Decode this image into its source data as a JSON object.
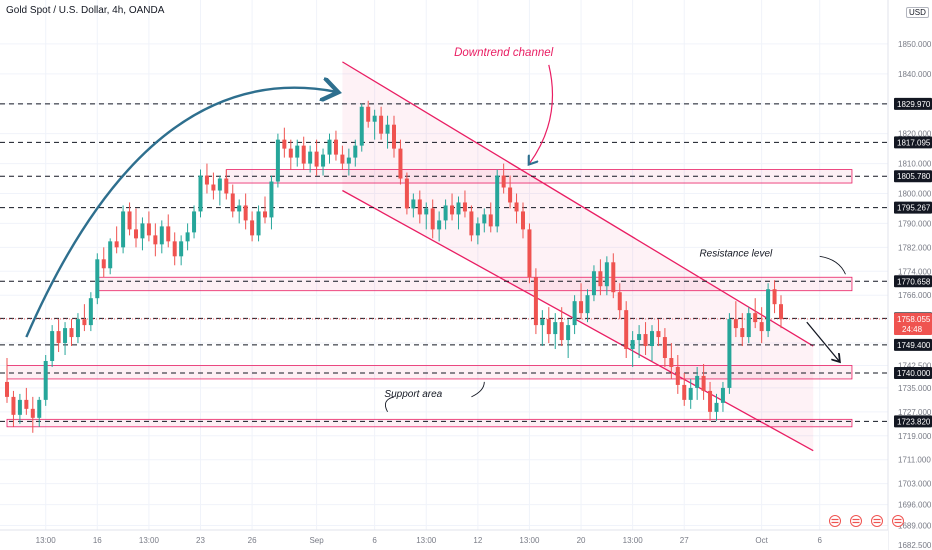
{
  "header": {
    "symbol_title": "Gold Spot / U.S. Dollar, 4h, OANDA",
    "currency_badge": "USD"
  },
  "colors": {
    "up": "#26a69a",
    "down": "#ef5350",
    "channel": "#e91e63",
    "arrow": "#2e6f8e",
    "level_line": "#131722",
    "price_line": "#ef5350"
  },
  "chart_data": {
    "type": "candlestick",
    "title": "Gold Spot / U.S. Dollar, 4h, OANDA",
    "ylim": [
      1687.5,
      1858
    ],
    "y_ticks": [
      "1850.000",
      "1840.000",
      "1830.000",
      "1820.000",
      "1810.000",
      "1800.000",
      "1790.000",
      "1782.000",
      "1774.000",
      "1766.000",
      "1758.000",
      "1750.000",
      "1742.500",
      "1735.000",
      "1727.000",
      "1719.000",
      "1711.000",
      "1703.000",
      "1696.000",
      "1689.000",
      "1682.500"
    ],
    "x_ticks": [
      {
        "label": "13:00",
        "i": 6
      },
      {
        "label": "16",
        "i": 14
      },
      {
        "label": "13:00",
        "i": 22
      },
      {
        "label": "23",
        "i": 30
      },
      {
        "label": "26",
        "i": 38
      },
      {
        "label": "Sep",
        "i": 48
      },
      {
        "label": "6",
        "i": 57
      },
      {
        "label": "13:00",
        "i": 65
      },
      {
        "label": "12",
        "i": 73
      },
      {
        "label": "13:00",
        "i": 81
      },
      {
        "label": "20",
        "i": 89
      },
      {
        "label": "13:00",
        "i": 97
      },
      {
        "label": "27",
        "i": 105
      },
      {
        "label": "Oct",
        "i": 117
      },
      {
        "label": "6",
        "i": 126
      }
    ],
    "price_levels": [
      {
        "label": "1829.970",
        "value": 1829.97,
        "style": "dashed"
      },
      {
        "label": "1817.095",
        "value": 1817.1,
        "style": "dashed"
      },
      {
        "label": "1805.780",
        "value": 1805.78,
        "style": "dashed"
      },
      {
        "label": "1795.267",
        "value": 1795.27,
        "style": "dashed"
      },
      {
        "label": "1770.658",
        "value": 1770.66,
        "style": "dashed"
      },
      {
        "label": "1758.250",
        "value": 1758.25,
        "style": "dashed"
      },
      {
        "label": "1749.400",
        "value": 1749.4,
        "style": "dashed"
      },
      {
        "label": "1740.000",
        "value": 1740.0,
        "style": "dashed"
      },
      {
        "label": "1723.820",
        "value": 1723.82,
        "style": "dashed"
      }
    ],
    "current_price": {
      "label": "1758.055",
      "countdown": "24:48",
      "value": 1758.06
    },
    "zones": [
      {
        "name": "resistance-zone-1805",
        "from_i": 34,
        "to_i": 131,
        "y1": 1803.5,
        "y2": 1808
      },
      {
        "name": "resistance-zone-1770",
        "from_i": 14,
        "to_i": 131,
        "y1": 1767.5,
        "y2": 1772
      },
      {
        "name": "support-zone-1740",
        "from_i": 0,
        "to_i": 131,
        "y1": 1738,
        "y2": 1742.5
      },
      {
        "name": "support-zone-1723",
        "from_i": 0,
        "to_i": 131,
        "y1": 1722,
        "y2": 1724.5
      }
    ],
    "channel": {
      "upper": {
        "i1": 52,
        "y1": 1844,
        "i2": 125,
        "y2": 1749
      },
      "lower": {
        "i1": 52,
        "y1": 1801,
        "i2": 125,
        "y2": 1714
      }
    },
    "annotations": [
      {
        "text": "Downtrend channel",
        "i": 77,
        "y": 1846
      },
      {
        "text": "Resistance level",
        "i": 113,
        "y": 1779
      },
      {
        "text": "Support area",
        "i": 63,
        "y": 1732
      }
    ],
    "candles": [
      [
        1737,
        1745,
        1730,
        1732
      ],
      [
        1732,
        1734,
        1722,
        1726
      ],
      [
        1726,
        1733,
        1723,
        1731
      ],
      [
        1731,
        1735,
        1726,
        1728
      ],
      [
        1728,
        1732,
        1720,
        1725
      ],
      [
        1725,
        1732,
        1722,
        1731
      ],
      [
        1731,
        1746,
        1729,
        1744
      ],
      [
        1744,
        1756,
        1742,
        1754
      ],
      [
        1754,
        1758,
        1747,
        1750
      ],
      [
        1750,
        1757,
        1746,
        1755
      ],
      [
        1755,
        1758,
        1749,
        1752
      ],
      [
        1752,
        1760,
        1750,
        1758
      ],
      [
        1758,
        1763,
        1754,
        1756
      ],
      [
        1756,
        1767,
        1754,
        1765
      ],
      [
        1765,
        1780,
        1763,
        1778
      ],
      [
        1778,
        1782,
        1772,
        1775
      ],
      [
        1775,
        1785,
        1773,
        1784
      ],
      [
        1784,
        1789,
        1780,
        1782
      ],
      [
        1782,
        1796,
        1780,
        1794
      ],
      [
        1794,
        1797,
        1786,
        1788
      ],
      [
        1788,
        1795,
        1782,
        1785
      ],
      [
        1785,
        1792,
        1781,
        1790
      ],
      [
        1790,
        1794,
        1784,
        1786
      ],
      [
        1786,
        1790,
        1779,
        1783
      ],
      [
        1783,
        1791,
        1780,
        1789
      ],
      [
        1789,
        1793,
        1782,
        1784
      ],
      [
        1784,
        1787,
        1776,
        1779
      ],
      [
        1779,
        1786,
        1776,
        1784
      ],
      [
        1784,
        1790,
        1781,
        1787
      ],
      [
        1787,
        1796,
        1785,
        1794
      ],
      [
        1794,
        1808,
        1792,
        1806
      ],
      [
        1806,
        1810,
        1800,
        1803
      ],
      [
        1803,
        1807,
        1798,
        1801
      ],
      [
        1801,
        1806,
        1796,
        1805
      ],
      [
        1805,
        1808,
        1798,
        1800
      ],
      [
        1800,
        1803,
        1792,
        1794
      ],
      [
        1794,
        1798,
        1790,
        1796
      ],
      [
        1796,
        1800,
        1788,
        1791
      ],
      [
        1791,
        1794,
        1784,
        1786
      ],
      [
        1786,
        1796,
        1784,
        1794
      ],
      [
        1794,
        1799,
        1790,
        1792
      ],
      [
        1792,
        1806,
        1788,
        1804
      ],
      [
        1804,
        1820,
        1802,
        1818
      ],
      [
        1818,
        1822,
        1812,
        1815
      ],
      [
        1815,
        1818,
        1808,
        1812
      ],
      [
        1812,
        1818,
        1809,
        1816
      ],
      [
        1816,
        1819,
        1808,
        1810
      ],
      [
        1810,
        1816,
        1807,
        1814
      ],
      [
        1814,
        1818,
        1806,
        1809
      ],
      [
        1809,
        1815,
        1806,
        1813
      ],
      [
        1813,
        1820,
        1810,
        1818
      ],
      [
        1818,
        1821,
        1811,
        1813
      ],
      [
        1813,
        1816,
        1808,
        1810
      ],
      [
        1810,
        1815,
        1806,
        1812
      ],
      [
        1812,
        1818,
        1809,
        1816
      ],
      [
        1816,
        1830,
        1814,
        1829
      ],
      [
        1829,
        1831,
        1822,
        1824
      ],
      [
        1824,
        1828,
        1818,
        1826
      ],
      [
        1826,
        1829,
        1818,
        1820
      ],
      [
        1820,
        1826,
        1815,
        1823
      ],
      [
        1823,
        1826,
        1812,
        1815
      ],
      [
        1815,
        1818,
        1803,
        1805
      ],
      [
        1805,
        1807,
        1793,
        1795
      ],
      [
        1795,
        1800,
        1792,
        1798
      ],
      [
        1798,
        1801,
        1790,
        1793
      ],
      [
        1793,
        1797,
        1788,
        1795
      ],
      [
        1795,
        1798,
        1785,
        1788
      ],
      [
        1788,
        1794,
        1784,
        1791
      ],
      [
        1791,
        1798,
        1788,
        1796
      ],
      [
        1796,
        1800,
        1791,
        1793
      ],
      [
        1793,
        1799,
        1788,
        1797
      ],
      [
        1797,
        1801,
        1792,
        1794
      ],
      [
        1794,
        1796,
        1784,
        1786
      ],
      [
        1786,
        1792,
        1783,
        1790
      ],
      [
        1790,
        1795,
        1787,
        1793
      ],
      [
        1793,
        1797,
        1787,
        1789
      ],
      [
        1789,
        1808,
        1787,
        1806
      ],
      [
        1806,
        1810,
        1800,
        1802
      ],
      [
        1802,
        1806,
        1795,
        1797
      ],
      [
        1797,
        1800,
        1790,
        1794
      ],
      [
        1794,
        1797,
        1785,
        1788
      ],
      [
        1788,
        1790,
        1770,
        1772
      ],
      [
        1772,
        1775,
        1753,
        1756
      ],
      [
        1756,
        1761,
        1749,
        1758
      ],
      [
        1758,
        1762,
        1750,
        1753
      ],
      [
        1753,
        1760,
        1748,
        1757
      ],
      [
        1757,
        1762,
        1749,
        1751
      ],
      [
        1751,
        1758,
        1745,
        1756
      ],
      [
        1756,
        1766,
        1753,
        1764
      ],
      [
        1764,
        1770,
        1758,
        1760
      ],
      [
        1760,
        1768,
        1757,
        1766
      ],
      [
        1766,
        1776,
        1764,
        1774
      ],
      [
        1774,
        1778,
        1766,
        1769
      ],
      [
        1769,
        1779,
        1766,
        1777
      ],
      [
        1777,
        1780,
        1765,
        1767
      ],
      [
        1767,
        1770,
        1758,
        1761
      ],
      [
        1761,
        1764,
        1745,
        1748
      ],
      [
        1748,
        1754,
        1742,
        1751
      ],
      [
        1751,
        1756,
        1745,
        1753
      ],
      [
        1753,
        1757,
        1746,
        1749
      ],
      [
        1749,
        1756,
        1744,
        1754
      ],
      [
        1754,
        1758,
        1749,
        1752
      ],
      [
        1752,
        1755,
        1742,
        1745
      ],
      [
        1745,
        1750,
        1738,
        1742
      ],
      [
        1742,
        1746,
        1733,
        1736
      ],
      [
        1736,
        1740,
        1729,
        1731
      ],
      [
        1731,
        1738,
        1728,
        1735
      ],
      [
        1735,
        1742,
        1731,
        1739
      ],
      [
        1739,
        1743,
        1731,
        1734
      ],
      [
        1734,
        1737,
        1724,
        1727
      ],
      [
        1727,
        1733,
        1724,
        1730
      ],
      [
        1730,
        1737,
        1727,
        1735
      ],
      [
        1735,
        1760,
        1733,
        1758
      ],
      [
        1758,
        1764,
        1752,
        1755
      ],
      [
        1755,
        1760,
        1749,
        1752
      ],
      [
        1752,
        1762,
        1750,
        1760
      ],
      [
        1760,
        1765,
        1755,
        1757
      ],
      [
        1757,
        1762,
        1750,
        1754
      ],
      [
        1754,
        1770,
        1752,
        1768
      ],
      [
        1768,
        1771,
        1760,
        1763
      ],
      [
        1763,
        1766,
        1755,
        1758
      ]
    ]
  }
}
